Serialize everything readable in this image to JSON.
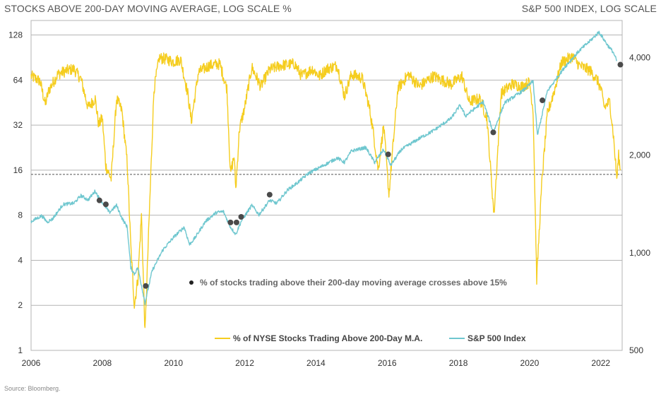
{
  "header": {
    "left_title": "STOCKS ABOVE 200-DAY MOVING AVERAGE, LOG SCALE %",
    "right_title": "S&P 500 INDEX, LOG SCALE"
  },
  "source": "Source: Bloomberg.",
  "colors": {
    "breadth": "#f5cd1f",
    "spx": "#6fc7cf",
    "marker": "#4a4a4a",
    "grid": "#b4b4b4",
    "threshold": "#555555"
  },
  "chart_data": {
    "type": "line",
    "xlim": [
      2006,
      2022.6
    ],
    "x_ticks": [
      "2006",
      "2008",
      "2010",
      "2012",
      "2014",
      "2016",
      "2018",
      "2020",
      "2022"
    ],
    "y_left": {
      "scale": "log2",
      "ylim": [
        1,
        160
      ],
      "ticks": [
        "1",
        "2",
        "4",
        "8",
        "16",
        "32",
        "64",
        "128"
      ]
    },
    "y_right": {
      "scale": "log",
      "ylim": [
        500,
        5200
      ],
      "ticks": [
        "500",
        "1,000",
        "2,000",
        "4,000"
      ]
    },
    "threshold_line": {
      "value": 15,
      "style": "dashed"
    },
    "series": [
      {
        "name": "% of NYSE Stocks Trading Above 200-Day M.A.",
        "axis": "left",
        "points": [
          [
            2006.0,
            68
          ],
          [
            2006.25,
            63
          ],
          [
            2006.4,
            44
          ],
          [
            2006.5,
            55
          ],
          [
            2006.75,
            70
          ],
          [
            2007.0,
            74
          ],
          [
            2007.2,
            76
          ],
          [
            2007.4,
            65
          ],
          [
            2007.6,
            42
          ],
          [
            2007.8,
            48
          ],
          [
            2007.9,
            32
          ],
          [
            2008.0,
            36
          ],
          [
            2008.1,
            17
          ],
          [
            2008.25,
            14
          ],
          [
            2008.4,
            48
          ],
          [
            2008.55,
            40
          ],
          [
            2008.7,
            18
          ],
          [
            2008.8,
            5
          ],
          [
            2008.9,
            2
          ],
          [
            2009.0,
            3
          ],
          [
            2009.1,
            8
          ],
          [
            2009.2,
            1.3
          ],
          [
            2009.3,
            6
          ],
          [
            2009.45,
            55
          ],
          [
            2009.6,
            90
          ],
          [
            2009.8,
            88
          ],
          [
            2010.0,
            85
          ],
          [
            2010.2,
            88
          ],
          [
            2010.4,
            52
          ],
          [
            2010.5,
            34
          ],
          [
            2010.7,
            72
          ],
          [
            2011.0,
            80
          ],
          [
            2011.3,
            82
          ],
          [
            2011.5,
            56
          ],
          [
            2011.6,
            15
          ],
          [
            2011.7,
            20
          ],
          [
            2011.75,
            12
          ],
          [
            2011.85,
            30
          ],
          [
            2012.0,
            42
          ],
          [
            2012.2,
            78
          ],
          [
            2012.45,
            58
          ],
          [
            2012.7,
            75
          ],
          [
            2013.0,
            80
          ],
          [
            2013.4,
            82
          ],
          [
            2013.6,
            68
          ],
          [
            2013.9,
            76
          ],
          [
            2014.1,
            68
          ],
          [
            2014.3,
            76
          ],
          [
            2014.6,
            80
          ],
          [
            2014.8,
            50
          ],
          [
            2015.0,
            70
          ],
          [
            2015.3,
            66
          ],
          [
            2015.5,
            42
          ],
          [
            2015.6,
            30
          ],
          [
            2015.75,
            16
          ],
          [
            2015.9,
            32
          ],
          [
            2016.05,
            11
          ],
          [
            2016.3,
            56
          ],
          [
            2016.6,
            70
          ],
          [
            2016.9,
            58
          ],
          [
            2017.3,
            68
          ],
          [
            2017.8,
            60
          ],
          [
            2018.1,
            68
          ],
          [
            2018.3,
            46
          ],
          [
            2018.6,
            48
          ],
          [
            2018.8,
            36
          ],
          [
            2019.0,
            8
          ],
          [
            2019.2,
            52
          ],
          [
            2019.5,
            60
          ],
          [
            2019.8,
            58
          ],
          [
            2020.0,
            62
          ],
          [
            2020.1,
            40
          ],
          [
            2020.2,
            3
          ],
          [
            2020.35,
            14
          ],
          [
            2020.5,
            38
          ],
          [
            2020.7,
            55
          ],
          [
            2020.9,
            84
          ],
          [
            2021.2,
            92
          ],
          [
            2021.4,
            80
          ],
          [
            2021.7,
            74
          ],
          [
            2021.9,
            64
          ],
          [
            2022.0,
            56
          ],
          [
            2022.1,
            42
          ],
          [
            2022.25,
            46
          ],
          [
            2022.35,
            28
          ],
          [
            2022.45,
            14
          ],
          [
            2022.5,
            20
          ],
          [
            2022.55,
            16
          ]
        ]
      },
      {
        "name": "S&P 500 Index",
        "axis": "right",
        "points": [
          [
            2006.0,
            1248
          ],
          [
            2006.3,
            1300
          ],
          [
            2006.45,
            1245
          ],
          [
            2006.6,
            1270
          ],
          [
            2006.9,
            1410
          ],
          [
            2007.2,
            1420
          ],
          [
            2007.4,
            1500
          ],
          [
            2007.6,
            1455
          ],
          [
            2007.8,
            1550
          ],
          [
            2007.9,
            1480
          ],
          [
            2008.0,
            1430
          ],
          [
            2008.2,
            1330
          ],
          [
            2008.4,
            1400
          ],
          [
            2008.55,
            1280
          ],
          [
            2008.7,
            1200
          ],
          [
            2008.8,
            900
          ],
          [
            2008.9,
            860
          ],
          [
            2009.0,
            900
          ],
          [
            2009.2,
            700
          ],
          [
            2009.4,
            880
          ],
          [
            2009.7,
            1020
          ],
          [
            2010.0,
            1115
          ],
          [
            2010.3,
            1200
          ],
          [
            2010.45,
            1060
          ],
          [
            2010.6,
            1110
          ],
          [
            2010.9,
            1250
          ],
          [
            2011.2,
            1330
          ],
          [
            2011.4,
            1340
          ],
          [
            2011.6,
            1200
          ],
          [
            2011.75,
            1140
          ],
          [
            2011.9,
            1250
          ],
          [
            2012.2,
            1400
          ],
          [
            2012.4,
            1310
          ],
          [
            2012.7,
            1450
          ],
          [
            2012.9,
            1420
          ],
          [
            2013.2,
            1560
          ],
          [
            2013.5,
            1650
          ],
          [
            2013.8,
            1760
          ],
          [
            2014.1,
            1830
          ],
          [
            2014.6,
            1960
          ],
          [
            2014.8,
            1900
          ],
          [
            2015.0,
            2060
          ],
          [
            2015.4,
            2110
          ],
          [
            2015.65,
            1900
          ],
          [
            2015.9,
            2080
          ],
          [
            2016.1,
            1860
          ],
          [
            2016.4,
            2080
          ],
          [
            2016.9,
            2250
          ],
          [
            2017.3,
            2380
          ],
          [
            2017.8,
            2600
          ],
          [
            2018.05,
            2850
          ],
          [
            2018.2,
            2640
          ],
          [
            2018.7,
            2920
          ],
          [
            2018.98,
            2350
          ],
          [
            2019.3,
            2900
          ],
          [
            2019.8,
            3150
          ],
          [
            2020.1,
            3380
          ],
          [
            2020.22,
            2300
          ],
          [
            2020.5,
            3150
          ],
          [
            2020.8,
            3500
          ],
          [
            2021.0,
            3750
          ],
          [
            2021.4,
            4200
          ],
          [
            2021.7,
            4500
          ],
          [
            2021.95,
            4790
          ],
          [
            2022.2,
            4350
          ],
          [
            2022.35,
            4150
          ],
          [
            2022.45,
            3900
          ]
        ]
      }
    ],
    "markers": {
      "label": "% of stocks trading above their 200-day moving average crosses above 15%",
      "x": [
        2007.92,
        2008.1,
        2009.22,
        2011.6,
        2011.77,
        2011.9,
        2012.7,
        2016.03,
        2018.98,
        2020.36,
        2022.55
      ],
      "spx": [
        1450,
        1410,
        790,
        1240,
        1240,
        1290,
        1510,
        2010,
        2350,
        2950,
        3800
      ]
    }
  }
}
